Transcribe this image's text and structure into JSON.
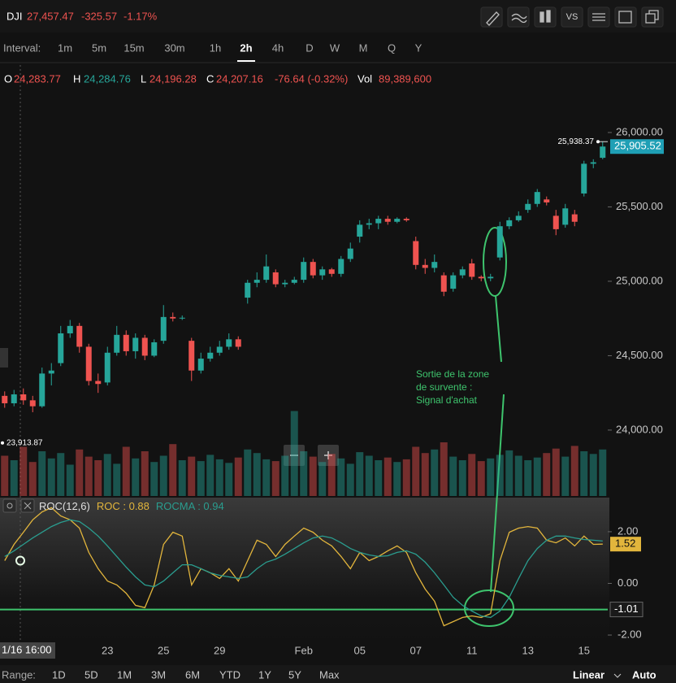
{
  "toolbar": {
    "symbol": "DJI",
    "price": "27,457.47",
    "change": "-325.57",
    "change_pct": "-1.17%",
    "compare": "VS"
  },
  "intervals": {
    "label": "Interval:",
    "items": [
      "1m",
      "5m",
      "15m",
      "30m",
      "1h",
      "2h",
      "4h",
      "D",
      "W",
      "M",
      "Q",
      "Y"
    ],
    "selected": "2h"
  },
  "ohlc_row": [
    {
      "label": "O",
      "value": "24,283.77",
      "color": "#ef5350"
    },
    {
      "label": "H",
      "value": "24,284.76",
      "color": "#26a69a"
    },
    {
      "label": "L",
      "value": "24,196.28",
      "color": "#ef5350"
    },
    {
      "label": "C",
      "value": "24,207.16",
      "color": "#ef5350"
    },
    {
      "label": "-76.64 (-0.32%)",
      "value": null,
      "color": "#ef5350"
    },
    {
      "label": "Vol",
      "value": "89,389,600",
      "color": "#ef5350"
    }
  ],
  "chart_data": [
    {
      "type": "candlestick",
      "categories": [
        null,
        null,
        null,
        null,
        null,
        null,
        null,
        null,
        null,
        null,
        null,
        "23",
        null,
        null,
        null,
        null,
        null,
        "25",
        null,
        null,
        null,
        null,
        null,
        "29",
        null,
        null,
        null,
        null,
        null,
        null,
        null,
        null,
        "Feb",
        null,
        null,
        null,
        null,
        null,
        "05",
        null,
        null,
        null,
        null,
        null,
        "07",
        null,
        null,
        null,
        null,
        null,
        "11",
        null,
        null,
        null,
        null,
        null,
        "13",
        null,
        null,
        null,
        null,
        null,
        "15",
        null,
        null
      ],
      "open": [
        24230,
        24180,
        24240,
        24200,
        24160,
        24380,
        24450,
        24650,
        24700,
        24560,
        24330,
        24320,
        24520,
        24640,
        24530,
        24620,
        24500,
        24600,
        24760,
        24750,
        24600,
        24400,
        24480,
        24520,
        24560,
        24610,
        24890,
        24990,
        25010,
        25060,
        24980,
        24990,
        25010,
        25130,
        25040,
        25080,
        25050,
        25150,
        25300,
        25380,
        25390,
        25420,
        25400,
        25420,
        25270,
        25110,
        25090,
        25040,
        24950,
        25040,
        25120,
        25030,
        25020,
        25160,
        25370,
        25410,
        25480,
        25520,
        25550,
        25440,
        25380,
        25450,
        25590,
        25790,
        25830
      ],
      "high": [
        24260,
        24270,
        24280,
        24230,
        24420,
        24450,
        24700,
        24740,
        24720,
        24580,
        24380,
        24560,
        24700,
        24670,
        24650,
        24640,
        24610,
        24840,
        24790,
        24770,
        24620,
        24520,
        24560,
        24600,
        24650,
        24630,
        25010,
        25060,
        25180,
        25080,
        25010,
        25030,
        25160,
        25150,
        25100,
        25090,
        25170,
        25260,
        25410,
        25420,
        25440,
        25440,
        25430,
        25430,
        25300,
        25150,
        25180,
        25060,
        25060,
        25100,
        25150,
        25040,
        25050,
        25400,
        25430,
        25470,
        25550,
        25620,
        25570,
        25480,
        25520,
        25480,
        25810,
        25820,
        25938.37
      ],
      "low": [
        24150,
        24160,
        24170,
        24120,
        24150,
        24300,
        24430,
        24620,
        24520,
        24300,
        24250,
        24300,
        24500,
        24500,
        24480,
        24470,
        24490,
        24580,
        24730,
        24740,
        24330,
        24380,
        24460,
        24500,
        24540,
        24540,
        24850,
        24960,
        24990,
        24960,
        24960,
        24980,
        24990,
        25020,
        25010,
        25030,
        25030,
        25130,
        25260,
        25350,
        25350,
        25380,
        25390,
        25400,
        25080,
        25050,
        25060,
        24900,
        24930,
        25020,
        25010,
        25000,
        25000,
        25140,
        25350,
        25400,
        25460,
        25500,
        25510,
        25310,
        25360,
        25370,
        25570,
        25760,
        25820
      ],
      "close": [
        24180,
        24240,
        24200,
        24160,
        24380,
        24400,
        24650,
        24700,
        24560,
        24330,
        24310,
        24520,
        24640,
        24530,
        24620,
        24500,
        24590,
        24760,
        24750,
        24755,
        24400,
        24480,
        24520,
        24560,
        24610,
        24560,
        24990,
        25010,
        25100,
        24980,
        24990,
        25010,
        25130,
        25040,
        25080,
        25050,
        25150,
        25220,
        25380,
        25390,
        25420,
        25400,
        25420,
        25410,
        25110,
        25090,
        25130,
        24930,
        25040,
        25080,
        25030,
        25020,
        25030,
        25370,
        25410,
        25440,
        25520,
        25600,
        25530,
        25350,
        25490,
        25400,
        25790,
        25800,
        25905.52
      ],
      "volume": [
        45,
        40,
        55,
        38,
        50,
        42,
        48,
        35,
        52,
        44,
        40,
        47,
        36,
        55,
        42,
        50,
        38,
        45,
        58,
        40,
        44,
        39,
        46,
        41,
        37,
        43,
        52,
        48,
        41,
        39,
        45,
        95,
        50,
        44,
        38,
        47,
        42,
        36,
        49,
        45,
        40,
        43,
        38,
        41,
        55,
        48,
        52,
        60,
        44,
        40,
        47,
        39,
        42,
        46,
        51,
        45,
        40,
        43,
        48,
        53,
        44,
        56,
        50,
        47,
        52
      ],
      "vlim": [
        0,
        100
      ],
      "up_color": "#26a69a",
      "down_color": "#ef5350",
      "ylim": [
        23557,
        26262
      ],
      "yticks": [
        {
          "value": 24000,
          "label": "24,000.00"
        },
        {
          "value": 24500,
          "label": "24,500.00"
        },
        {
          "value": 25000,
          "label": "25,000.00"
        },
        {
          "value": 25500,
          "label": "25,500.00"
        },
        {
          "value": 26000,
          "label": "26,000.00"
        }
      ],
      "last_price": {
        "value": 25905.52,
        "label": "25,905.52"
      },
      "high_marker": {
        "value": 25938.37,
        "label": "25,938.37"
      },
      "low_marker": {
        "value": 23913.87,
        "label": "23,913.87"
      },
      "cursor_label": "1/16 16:00"
    },
    {
      "type": "line",
      "title": "ROC(12,6)",
      "series": [
        {
          "name": "ROC",
          "color": "#e2b53c",
          "values": [
            0.88,
            1.51,
            1.98,
            2.46,
            2.77,
            2.93,
            2.61,
            2.46,
            2.14,
            1.2,
            0.57,
            0.09,
            -0.06,
            -0.38,
            -0.85,
            -0.94,
            -0.06,
            1.51,
            1.98,
            1.83,
            -0.06,
            0.57,
            0.41,
            0.19,
            0.57,
            0.09,
            0.88,
            1.67,
            1.51,
            1.04,
            1.51,
            1.83,
            2.14,
            1.98,
            1.67,
            1.45,
            1.04,
            0.57,
            1.2,
            0.88,
            1.04,
            1.26,
            1.45,
            1.2,
            0.41,
            -0.22,
            -0.69,
            -1.64,
            -1.48,
            -1.32,
            -1.26,
            -1.32,
            -1.17,
            0.88,
            1.98,
            2.14,
            2.2,
            2.14,
            1.67,
            1.57,
            1.76,
            1.45,
            1.83,
            1.51,
            1.52
          ]
        },
        {
          "name": "ROCMA",
          "color": "#2a9d8f",
          "values": [
            1.04,
            1.26,
            1.51,
            1.76,
            1.98,
            2.2,
            2.36,
            2.46,
            2.39,
            2.14,
            1.83,
            1.45,
            1.04,
            0.63,
            0.25,
            -0.06,
            -0.13,
            0.09,
            0.41,
            0.72,
            0.72,
            0.57,
            0.41,
            0.31,
            0.25,
            0.19,
            0.25,
            0.57,
            0.82,
            0.94,
            1.13,
            1.35,
            1.57,
            1.76,
            1.83,
            1.76,
            1.57,
            1.35,
            1.2,
            1.1,
            1.04,
            1.07,
            1.2,
            1.26,
            1.13,
            0.82,
            0.41,
            -0.06,
            -0.54,
            -0.85,
            -1.07,
            -1.26,
            -1.32,
            -1.07,
            -0.54,
            0.19,
            0.88,
            1.35,
            1.67,
            1.83,
            1.83,
            1.76,
            1.7,
            1.67,
            1.64
          ]
        }
      ],
      "legend_values": [
        0.88,
        0.94
      ],
      "ylim": [
        -2.44,
        3.32
      ],
      "yticks": [
        {
          "value": -2,
          "label": "-2.00"
        },
        {
          "value": 0,
          "label": "0.00"
        },
        {
          "value": 2,
          "label": "2.00"
        }
      ],
      "last_value": 1.52,
      "hline": -1.01
    }
  ],
  "annotation": [
    "Sortie de la zone",
    "de survente :",
    "Signal d'achat"
  ],
  "ranges": {
    "label": "Range:",
    "items": [
      "1D",
      "5D",
      "1M",
      "3M",
      "6M",
      "YTD",
      "1Y",
      "5Y",
      "Max"
    ]
  },
  "scale_options": [
    "Linear",
    "Auto"
  ]
}
